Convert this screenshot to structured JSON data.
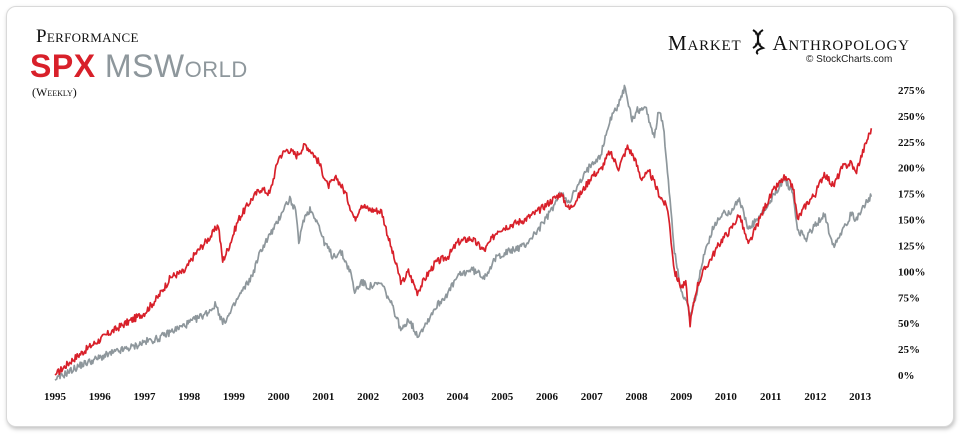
{
  "chart_data": {
    "type": "line",
    "title_top": "Performance",
    "title_series_1": "SPX",
    "title_series_2": "MSWorld",
    "subtitle": "(Weekly)",
    "brand_left": "Market",
    "brand_right": "Anthropology",
    "credit": "© StockCharts.com",
    "xlabel": "",
    "ylabel": "",
    "ylim": [
      0,
      275
    ],
    "yticks": [
      {
        "v": 275,
        "label": "275%"
      },
      {
        "v": 250,
        "label": "250%"
      },
      {
        "v": 225,
        "label": "225%"
      },
      {
        "v": 200,
        "label": "200%"
      },
      {
        "v": 175,
        "label": "175%"
      },
      {
        "v": 150,
        "label": "150%"
      },
      {
        "v": 125,
        "label": "125%"
      },
      {
        "v": 100,
        "label": "100%"
      },
      {
        "v": 75,
        "label": "75%"
      },
      {
        "v": 50,
        "label": "50%"
      },
      {
        "v": 25,
        "label": "25%"
      },
      {
        "v": 0,
        "label": "0%"
      }
    ],
    "xlim": [
      1995.0,
      2013.4
    ],
    "xticks": [
      {
        "v": 1995.0,
        "label": "1995"
      },
      {
        "v": 1996.0,
        "label": "1996"
      },
      {
        "v": 1997.0,
        "label": "1997"
      },
      {
        "v": 1998.0,
        "label": "1998"
      },
      {
        "v": 1999.0,
        "label": "1999"
      },
      {
        "v": 2000.0,
        "label": "2000"
      },
      {
        "v": 2001.0,
        "label": "2001"
      },
      {
        "v": 2002.0,
        "label": "2002"
      },
      {
        "v": 2003.0,
        "label": "2003"
      },
      {
        "v": 2004.0,
        "label": "2004"
      },
      {
        "v": 2005.0,
        "label": "2005"
      },
      {
        "v": 2006.0,
        "label": "2006"
      },
      {
        "v": 2007.0,
        "label": "2007"
      },
      {
        "v": 2008.0,
        "label": "2008"
      },
      {
        "v": 2009.0,
        "label": "2009"
      },
      {
        "v": 2010.0,
        "label": "2010"
      },
      {
        "v": 2011.0,
        "label": "2011"
      },
      {
        "v": 2012.0,
        "label": "2012"
      },
      {
        "v": 2013.0,
        "label": "2013"
      }
    ],
    "series": [
      {
        "name": "SPX",
        "color": "#d8202a",
        "points": [
          [
            1995.0,
            0
          ],
          [
            1995.4,
            15
          ],
          [
            1995.8,
            28
          ],
          [
            1996.2,
            40
          ],
          [
            1996.5,
            48
          ],
          [
            1996.8,
            55
          ],
          [
            1997.0,
            60
          ],
          [
            1997.3,
            75
          ],
          [
            1997.6,
            95
          ],
          [
            1997.9,
            100
          ],
          [
            1998.1,
            115
          ],
          [
            1998.3,
            125
          ],
          [
            1998.5,
            135
          ],
          [
            1998.65,
            145
          ],
          [
            1998.75,
            110
          ],
          [
            1998.9,
            125
          ],
          [
            1999.1,
            150
          ],
          [
            1999.4,
            170
          ],
          [
            1999.6,
            180
          ],
          [
            1999.8,
            175
          ],
          [
            2000.0,
            210
          ],
          [
            2000.2,
            218
          ],
          [
            2000.4,
            212
          ],
          [
            2000.6,
            222
          ],
          [
            2000.75,
            215
          ],
          [
            2000.9,
            205
          ],
          [
            2001.1,
            182
          ],
          [
            2001.3,
            190
          ],
          [
            2001.5,
            175
          ],
          [
            2001.7,
            150
          ],
          [
            2001.85,
            165
          ],
          [
            2002.0,
            160
          ],
          [
            2002.3,
            158
          ],
          [
            2002.5,
            125
          ],
          [
            2002.6,
            110
          ],
          [
            2002.75,
            88
          ],
          [
            2002.9,
            100
          ],
          [
            2003.1,
            80
          ],
          [
            2003.3,
            95
          ],
          [
            2003.5,
            108
          ],
          [
            2003.8,
            115
          ],
          [
            2004.0,
            128
          ],
          [
            2004.3,
            132
          ],
          [
            2004.6,
            120
          ],
          [
            2004.9,
            140
          ],
          [
            2005.2,
            145
          ],
          [
            2005.5,
            150
          ],
          [
            2005.8,
            158
          ],
          [
            2006.0,
            165
          ],
          [
            2006.3,
            175
          ],
          [
            2006.5,
            160
          ],
          [
            2006.8,
            178
          ],
          [
            2007.0,
            192
          ],
          [
            2007.2,
            198
          ],
          [
            2007.4,
            215
          ],
          [
            2007.6,
            200
          ],
          [
            2007.8,
            220
          ],
          [
            2007.95,
            210
          ],
          [
            2008.1,
            190
          ],
          [
            2008.3,
            195
          ],
          [
            2008.5,
            175
          ],
          [
            2008.7,
            160
          ],
          [
            2008.85,
            100
          ],
          [
            2009.0,
            85
          ],
          [
            2009.1,
            88
          ],
          [
            2009.2,
            50
          ],
          [
            2009.35,
            85
          ],
          [
            2009.5,
            100
          ],
          [
            2009.7,
            115
          ],
          [
            2009.9,
            130
          ],
          [
            2010.1,
            140
          ],
          [
            2010.3,
            155
          ],
          [
            2010.5,
            125
          ],
          [
            2010.7,
            145
          ],
          [
            2010.9,
            165
          ],
          [
            2011.1,
            180
          ],
          [
            2011.3,
            190
          ],
          [
            2011.5,
            182
          ],
          [
            2011.6,
            150
          ],
          [
            2011.8,
            165
          ],
          [
            2012.0,
            175
          ],
          [
            2012.2,
            195
          ],
          [
            2012.4,
            182
          ],
          [
            2012.6,
            200
          ],
          [
            2012.8,
            205
          ],
          [
            2012.9,
            195
          ],
          [
            2013.1,
            220
          ],
          [
            2013.25,
            238
          ]
        ]
      },
      {
        "name": "MSWorld",
        "color": "#8e979c",
        "points": [
          [
            1995.0,
            -5
          ],
          [
            1995.3,
            3
          ],
          [
            1995.6,
            10
          ],
          [
            1995.9,
            15
          ],
          [
            1996.2,
            20
          ],
          [
            1996.5,
            24
          ],
          [
            1996.8,
            28
          ],
          [
            1997.0,
            32
          ],
          [
            1997.3,
            35
          ],
          [
            1997.6,
            42
          ],
          [
            1997.9,
            48
          ],
          [
            1998.2,
            55
          ],
          [
            1998.4,
            60
          ],
          [
            1998.6,
            68
          ],
          [
            1998.75,
            50
          ],
          [
            1998.9,
            58
          ],
          [
            1999.1,
            75
          ],
          [
            1999.4,
            95
          ],
          [
            1999.6,
            120
          ],
          [
            1999.8,
            135
          ],
          [
            1999.95,
            145
          ],
          [
            2000.1,
            160
          ],
          [
            2000.25,
            170
          ],
          [
            2000.4,
            155
          ],
          [
            2000.45,
            125
          ],
          [
            2000.55,
            150
          ],
          [
            2000.7,
            160
          ],
          [
            2000.85,
            150
          ],
          [
            2001.0,
            130
          ],
          [
            2001.2,
            115
          ],
          [
            2001.4,
            118
          ],
          [
            2001.6,
            100
          ],
          [
            2001.7,
            80
          ],
          [
            2001.85,
            90
          ],
          [
            2002.0,
            85
          ],
          [
            2002.3,
            88
          ],
          [
            2002.5,
            70
          ],
          [
            2002.6,
            60
          ],
          [
            2002.75,
            42
          ],
          [
            2002.9,
            55
          ],
          [
            2003.1,
            38
          ],
          [
            2003.3,
            50
          ],
          [
            2003.5,
            65
          ],
          [
            2003.8,
            80
          ],
          [
            2004.0,
            95
          ],
          [
            2004.3,
            102
          ],
          [
            2004.6,
            95
          ],
          [
            2004.9,
            115
          ],
          [
            2005.2,
            120
          ],
          [
            2005.5,
            125
          ],
          [
            2005.8,
            140
          ],
          [
            2006.0,
            152
          ],
          [
            2006.3,
            175
          ],
          [
            2006.5,
            168
          ],
          [
            2006.8,
            190
          ],
          [
            2007.0,
            205
          ],
          [
            2007.2,
            212
          ],
          [
            2007.4,
            245
          ],
          [
            2007.6,
            262
          ],
          [
            2007.75,
            278
          ],
          [
            2007.9,
            245
          ],
          [
            2008.0,
            255
          ],
          [
            2008.2,
            258
          ],
          [
            2008.4,
            230
          ],
          [
            2008.5,
            255
          ],
          [
            2008.6,
            240
          ],
          [
            2008.75,
            170
          ],
          [
            2008.85,
            120
          ],
          [
            2009.0,
            82
          ],
          [
            2009.1,
            72
          ],
          [
            2009.2,
            55
          ],
          [
            2009.35,
            80
          ],
          [
            2009.5,
            115
          ],
          [
            2009.7,
            140
          ],
          [
            2009.9,
            155
          ],
          [
            2010.1,
            158
          ],
          [
            2010.3,
            170
          ],
          [
            2010.5,
            140
          ],
          [
            2010.7,
            150
          ],
          [
            2010.9,
            160
          ],
          [
            2011.1,
            175
          ],
          [
            2011.3,
            190
          ],
          [
            2011.5,
            175
          ],
          [
            2011.6,
            140
          ],
          [
            2011.8,
            132
          ],
          [
            2012.0,
            145
          ],
          [
            2012.2,
            155
          ],
          [
            2012.4,
            125
          ],
          [
            2012.6,
            140
          ],
          [
            2012.8,
            155
          ],
          [
            2012.9,
            150
          ],
          [
            2013.1,
            165
          ],
          [
            2013.25,
            172
          ]
        ]
      }
    ]
  }
}
